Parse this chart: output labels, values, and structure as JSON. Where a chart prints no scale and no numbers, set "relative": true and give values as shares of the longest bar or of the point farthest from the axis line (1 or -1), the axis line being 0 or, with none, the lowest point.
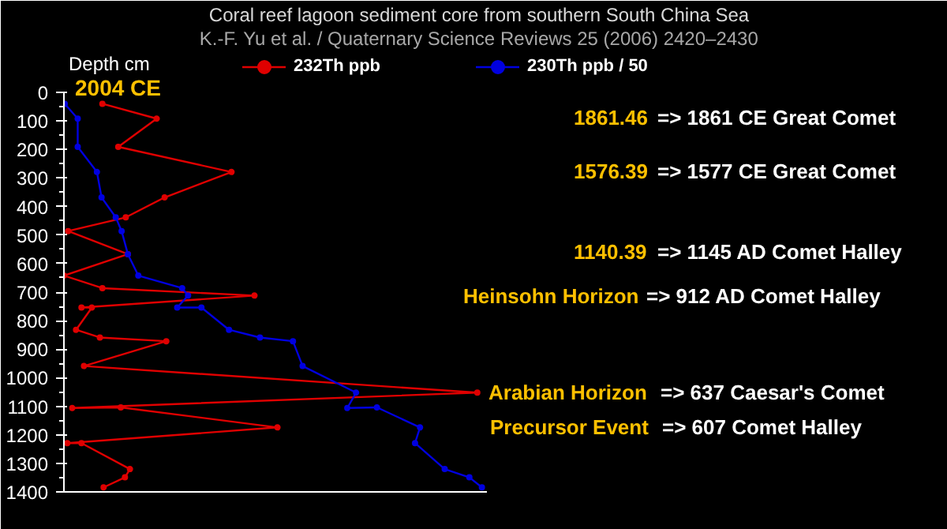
{
  "chart_data": {
    "type": "line",
    "orientation": "horizontal",
    "relative": true,
    "title": "Coral reef lagoon sediment core from southern South China Sea",
    "subtitle": "K.-F. Yu et al. / Quaternary Science Reviews 25 (2006) 2420–2430",
    "ylabel": "Depth cm",
    "ylim": [
      1400,
      0
    ],
    "yticks": [
      0,
      100,
      200,
      300,
      400,
      500,
      600,
      700,
      800,
      900,
      1000,
      1100,
      1200,
      1300,
      1400
    ],
    "tick_labels": "y",
    "grid": false,
    "legend": "top",
    "marker": "circle",
    "line_style": "solid",
    "series": [
      {
        "name": "232Th ppb",
        "color": "#e00000",
        "x": [
          40,
          92,
          191,
          279,
          368,
          438,
          486,
          567,
          642,
          686,
          712,
          754,
          754,
          832,
          859,
          872,
          959,
          1052,
          1106,
          1104,
          1174,
          1229,
          1229,
          1320,
          1349,
          1384
        ],
        "values": [
          0.092,
          0.222,
          0.13,
          0.401,
          0.241,
          0.148,
          0.01,
          0.153,
          0.0,
          0.092,
          0.456,
          0.042,
          0.067,
          0.029,
          0.086,
          0.245,
          0.048,
          0.989,
          0.02,
          0.136,
          0.511,
          0.008,
          0.042,
          0.158,
          0.146,
          0.095
        ]
      },
      {
        "name": "230Th ppb / 50",
        "color": "#0000e0",
        "x": [
          40,
          92,
          191,
          279,
          368,
          438,
          486,
          567,
          642,
          686,
          712,
          754,
          754,
          832,
          859,
          872,
          959,
          1052,
          1106,
          1104,
          1174,
          1229,
          1320,
          1349,
          1384
        ],
        "values": [
          0.002,
          0.033,
          0.033,
          0.079,
          0.09,
          0.124,
          0.138,
          0.153,
          0.178,
          0.283,
          0.297,
          0.271,
          0.329,
          0.395,
          0.469,
          0.548,
          0.571,
          0.699,
          0.678,
          0.749,
          0.852,
          0.84,
          0.911,
          0.97,
          1.0
        ]
      }
    ],
    "annotations": [
      "2004 CE",
      "1861.46 => 1861 CE Great Comet",
      "1576.39 => 1577 CE Great Comet",
      "1140.39 => 1145 AD Comet Halley",
      "Heinsohn Horizon => 912 AD Comet Halley",
      "Arabian Horizon => 637 Caesar's Comet",
      "Precursor Event => 607 Comet Halley"
    ]
  }
}
